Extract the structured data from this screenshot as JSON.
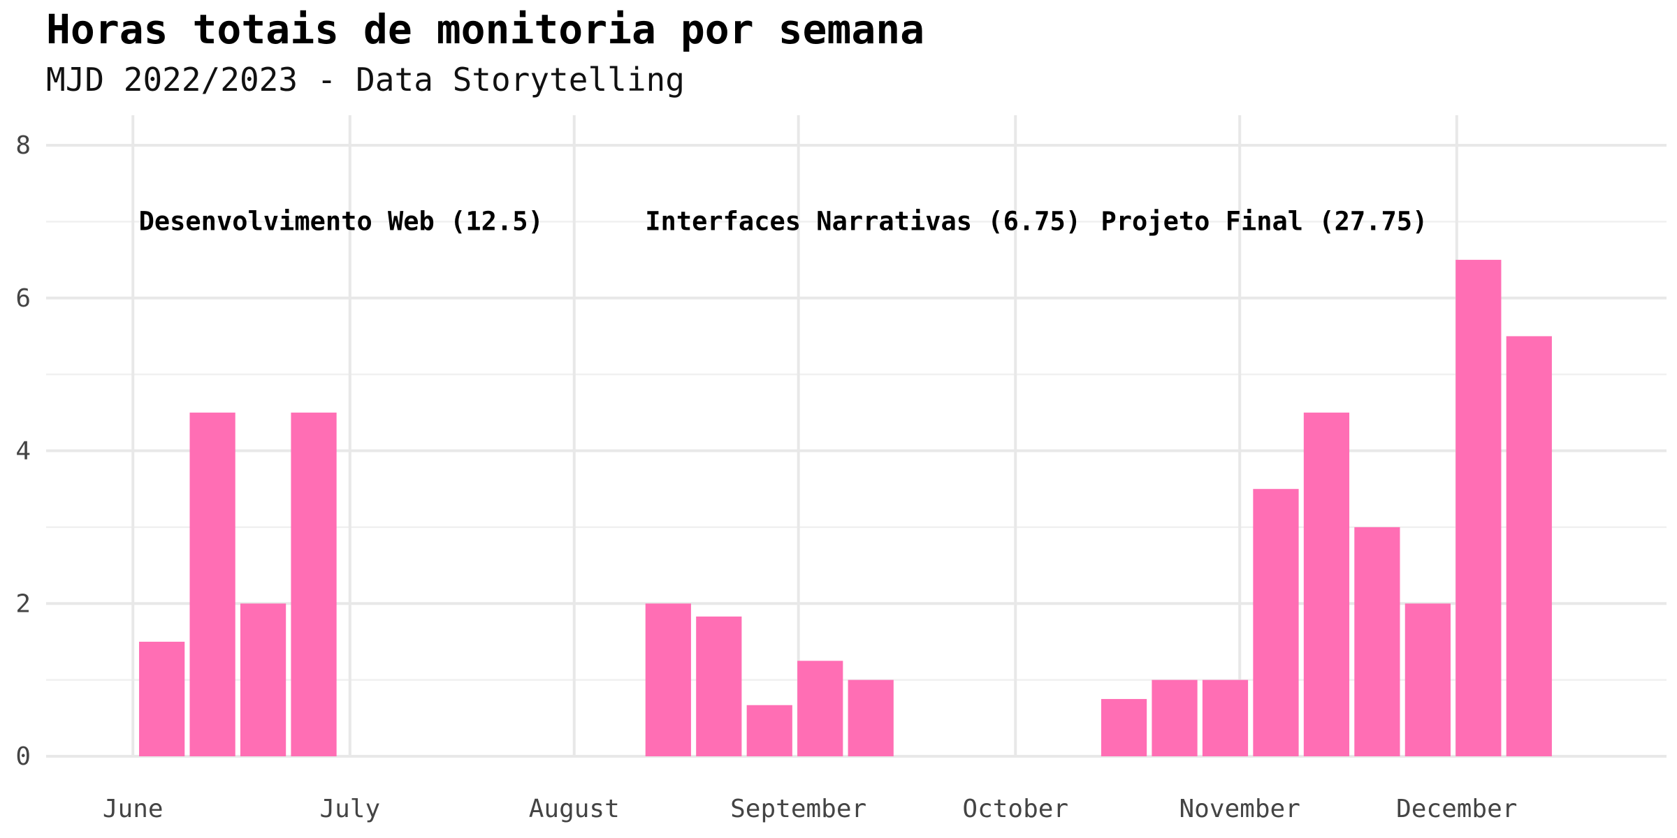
{
  "chart_data": {
    "type": "bar",
    "title": "Horas totais de monitoria por semana",
    "subtitle": "MJD 2022/2023 - Data Storytelling",
    "xlabel": "",
    "ylabel": "",
    "ylim": [
      0,
      8
    ],
    "y_ticks": [
      0,
      2,
      4,
      6,
      8
    ],
    "grid": true,
    "bar_color": "#ff6eb4",
    "x_ticks": [
      {
        "label": "June",
        "date": "2022-06-01"
      },
      {
        "label": "July",
        "date": "2022-07-01"
      },
      {
        "label": "August",
        "date": "2022-08-01"
      },
      {
        "label": "September",
        "date": "2022-09-01"
      },
      {
        "label": "October",
        "date": "2022-10-01"
      },
      {
        "label": "November",
        "date": "2022-11-01"
      },
      {
        "label": "December",
        "date": "2022-12-01"
      }
    ],
    "x_range": [
      "2022-05-20",
      "2022-12-30"
    ],
    "series": [
      {
        "x": [
          "2022-06-05",
          "2022-06-12",
          "2022-06-19",
          "2022-06-26",
          "2022-08-14",
          "2022-08-21",
          "2022-08-28",
          "2022-09-04",
          "2022-09-11",
          "2022-10-16",
          "2022-10-23",
          "2022-10-30",
          "2022-11-06",
          "2022-11-13",
          "2022-11-20",
          "2022-11-27",
          "2022-12-04",
          "2022-12-11"
        ],
        "values": [
          1.5,
          4.5,
          2,
          4.5,
          2,
          1.83,
          0.67,
          1.25,
          1,
          0.75,
          1,
          1,
          3.5,
          4.5,
          3,
          2,
          6.5,
          5.5
        ]
      }
    ],
    "annotations": [
      {
        "text": "Desenvolvimento Web (12.5)",
        "x": "2022-06-02",
        "y": 7
      },
      {
        "text": "Interfaces Narrativas (6.75)",
        "x": "2022-08-11",
        "y": 7
      },
      {
        "text": "Projeto Final (27.75)",
        "x": "2022-10-13",
        "y": 7
      }
    ]
  }
}
